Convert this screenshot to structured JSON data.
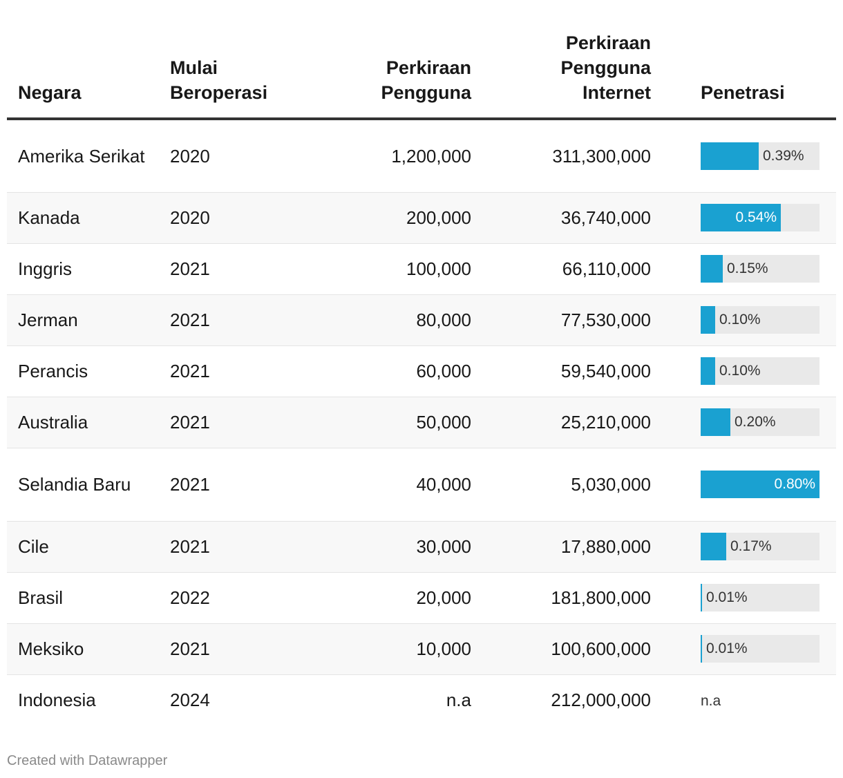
{
  "table": {
    "headers": {
      "country": "Negara",
      "year": "Mulai Beroperasi",
      "users": "Perkiraan Pengguna",
      "internet": "Perkiraan Pengguna Internet",
      "penetration": "Penetrasi"
    },
    "rows": [
      {
        "country": "Amerika Serikat",
        "year": "2020",
        "users": "1,200,000",
        "internet": "311,300,000",
        "pen_label": "0.39%",
        "pen_value": 0.39
      },
      {
        "country": "Kanada",
        "year": "2020",
        "users": "200,000",
        "internet": "36,740,000",
        "pen_label": "0.54%",
        "pen_value": 0.54
      },
      {
        "country": "Inggris",
        "year": "2021",
        "users": "100,000",
        "internet": "66,110,000",
        "pen_label": "0.15%",
        "pen_value": 0.15
      },
      {
        "country": "Jerman",
        "year": "2021",
        "users": "80,000",
        "internet": "77,530,000",
        "pen_label": "0.10%",
        "pen_value": 0.1
      },
      {
        "country": "Perancis",
        "year": "2021",
        "users": "60,000",
        "internet": "59,540,000",
        "pen_label": "0.10%",
        "pen_value": 0.1
      },
      {
        "country": "Australia",
        "year": "2021",
        "users": "50,000",
        "internet": "25,210,000",
        "pen_label": "0.20%",
        "pen_value": 0.2
      },
      {
        "country": "Selandia Baru",
        "year": "2021",
        "users": "40,000",
        "internet": "5,030,000",
        "pen_label": "0.80%",
        "pen_value": 0.8
      },
      {
        "country": "Cile",
        "year": "2021",
        "users": "30,000",
        "internet": "17,880,000",
        "pen_label": "0.17%",
        "pen_value": 0.17
      },
      {
        "country": "Brasil",
        "year": "2022",
        "users": "20,000",
        "internet": "181,800,000",
        "pen_label": "0.01%",
        "pen_value": 0.01
      },
      {
        "country": "Meksiko",
        "year": "2021",
        "users": "10,000",
        "internet": "100,600,000",
        "pen_label": "0.01%",
        "pen_value": 0.01
      },
      {
        "country": "Indonesia",
        "year": "2024",
        "users": "n.a",
        "internet": "212,000,000",
        "pen_label": "n.a",
        "pen_value": null
      }
    ]
  },
  "chart_data": {
    "type": "table",
    "columns": [
      "Negara",
      "Mulai Beroperasi",
      "Perkiraan Pengguna",
      "Perkiraan Pengguna Internet",
      "Penetrasi"
    ],
    "bar_column": "Penetrasi",
    "bar_max": 0.8,
    "bar_color": "#1aa1d1",
    "categories": [
      "Amerika Serikat",
      "Kanada",
      "Inggris",
      "Jerman",
      "Perancis",
      "Australia",
      "Selandia Baru",
      "Cile",
      "Brasil",
      "Meksiko",
      "Indonesia"
    ],
    "values": [
      0.39,
      0.54,
      0.15,
      0.1,
      0.1,
      0.2,
      0.8,
      0.17,
      0.01,
      0.01,
      null
    ]
  },
  "footer": {
    "credit": "Created with Datawrapper"
  }
}
